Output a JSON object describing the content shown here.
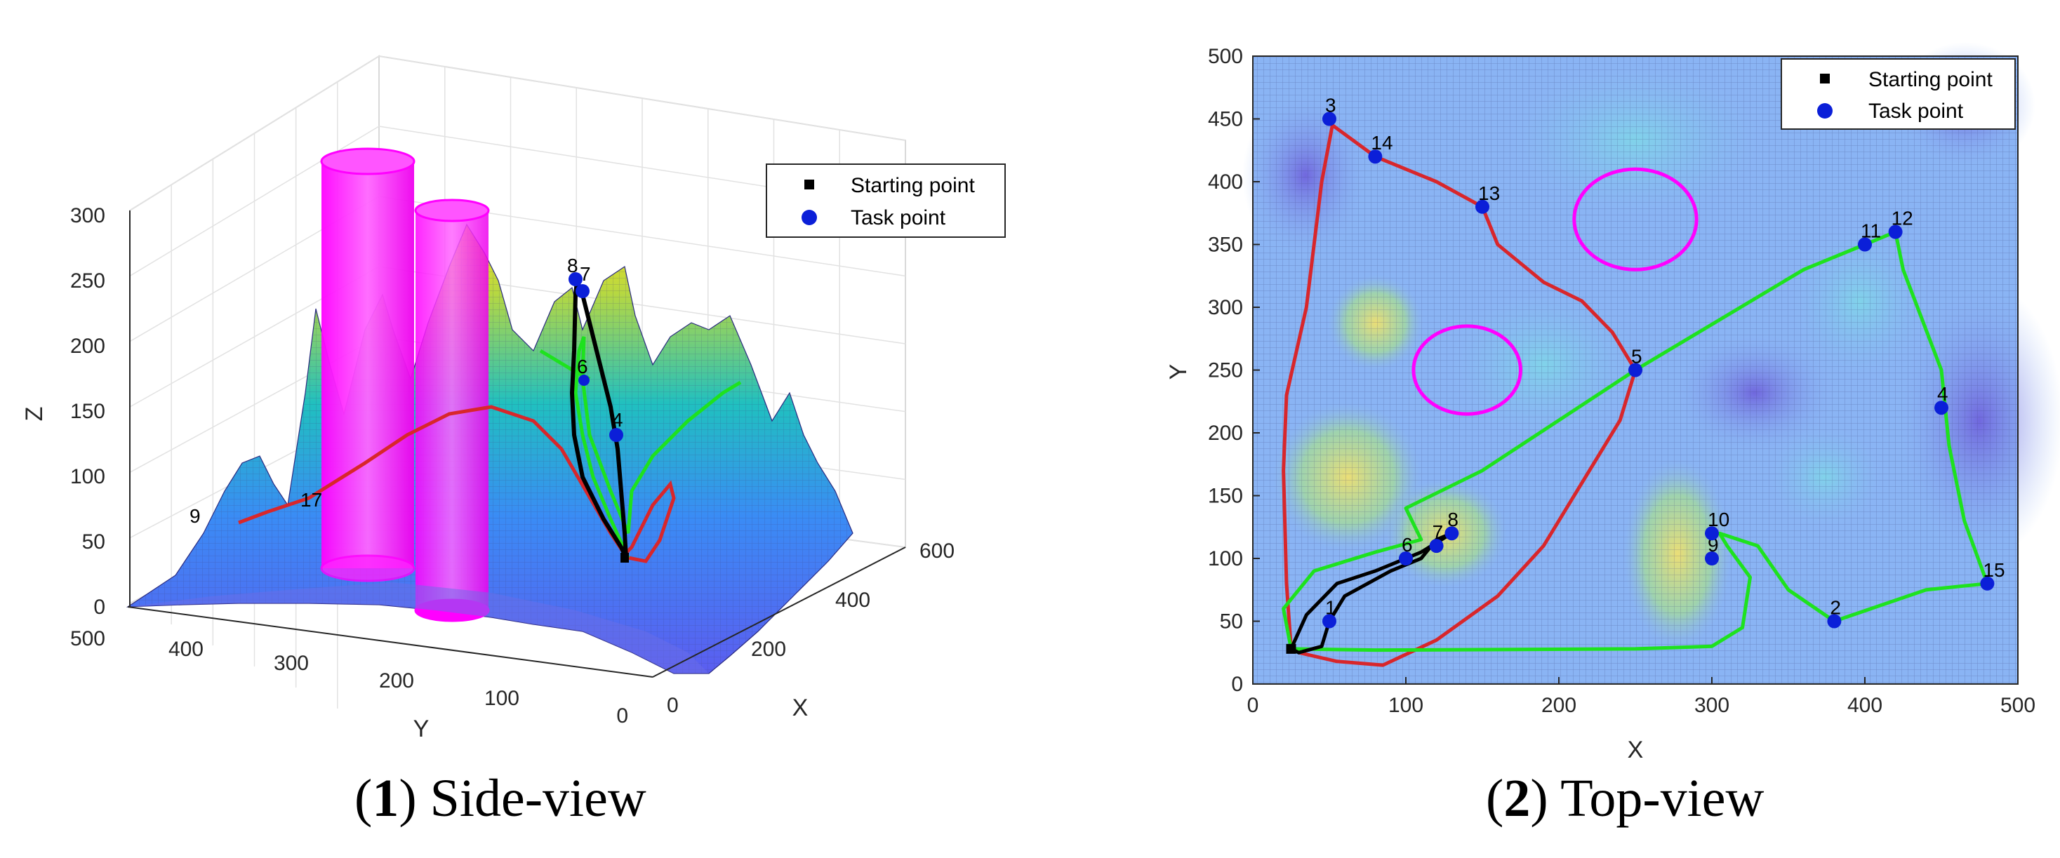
{
  "colors": {
    "red_path": "#d8262b",
    "green_path": "#1ee21e",
    "black_path": "#000000",
    "task_point": "#0b1fd8",
    "obstacle": "#ff00ff"
  },
  "legend": {
    "start_label": "Starting point",
    "task_label": "Task point"
  },
  "captions": {
    "side": {
      "num": "1",
      "text": "Side-view"
    },
    "top": {
      "num": "2",
      "text": "Top-view"
    }
  },
  "chart_data": [
    {
      "type": "surface3d",
      "axes": {
        "xlabel": "X",
        "ylabel": "Y",
        "zlabel": "Z",
        "x_ticks": [
          "0",
          "200",
          "400",
          "600"
        ],
        "y_ticks": [
          "500",
          "400",
          "300",
          "200",
          "100",
          "0"
        ],
        "z_ticks": [
          "0",
          "50",
          "100",
          "150",
          "200",
          "250",
          "300"
        ],
        "zlim": [
          0,
          300
        ]
      },
      "grid": "on",
      "legend_position": "top-right",
      "obstacles": [
        {
          "type": "cylinder",
          "x": 140,
          "y": 250,
          "r": 35,
          "z": [
            0,
            340
          ]
        },
        {
          "type": "cylinder",
          "x": 250,
          "y": 370,
          "r": 40,
          "z": [
            0,
            300
          ]
        }
      ],
      "point_labels": [
        "8",
        "7",
        "6",
        "4",
        "9",
        "17"
      ]
    },
    {
      "type": "scatter",
      "xlabel": "X",
      "ylabel": "Y",
      "xlim": [
        0,
        500
      ],
      "ylim": [
        0,
        500
      ],
      "x_ticks": [
        0,
        100,
        200,
        300,
        400,
        500
      ],
      "y_ticks": [
        0,
        50,
        100,
        150,
        200,
        250,
        300,
        350,
        400,
        450,
        500
      ],
      "legend_position": "top-right",
      "start": {
        "x": 25,
        "y": 28
      },
      "task_points": [
        {
          "label": "1",
          "x": 50,
          "y": 50
        },
        {
          "label": "2",
          "x": 380,
          "y": 50
        },
        {
          "label": "3",
          "x": 50,
          "y": 450
        },
        {
          "label": "4",
          "x": 450,
          "y": 220
        },
        {
          "label": "5",
          "x": 250,
          "y": 250
        },
        {
          "label": "6",
          "x": 100,
          "y": 100
        },
        {
          "label": "7",
          "x": 120,
          "y": 110
        },
        {
          "label": "8",
          "x": 130,
          "y": 120
        },
        {
          "label": "9",
          "x": 300,
          "y": 100
        },
        {
          "label": "10",
          "x": 300,
          "y": 120
        },
        {
          "label": "11",
          "x": 400,
          "y": 350
        },
        {
          "label": "12",
          "x": 420,
          "y": 360
        },
        {
          "label": "13",
          "x": 150,
          "y": 380
        },
        {
          "label": "14",
          "x": 80,
          "y": 420
        },
        {
          "label": "15",
          "x": 480,
          "y": 80
        }
      ],
      "obstacles": [
        {
          "shape": "circle",
          "x": 140,
          "y": 250,
          "r": 35
        },
        {
          "shape": "circle",
          "x": 250,
          "y": 370,
          "r": 40
        }
      ],
      "series": [
        {
          "color": "red",
          "points": [
            [
              25,
              28
            ],
            [
              22,
              80
            ],
            [
              20,
              170
            ],
            [
              22,
              230
            ],
            [
              35,
              300
            ],
            [
              45,
              400
            ],
            [
              52,
              445
            ],
            [
              80,
              420
            ],
            [
              120,
              400
            ],
            [
              150,
              380
            ],
            [
              160,
              350
            ],
            [
              190,
              320
            ],
            [
              215,
              305
            ],
            [
              235,
              280
            ],
            [
              250,
              250
            ],
            [
              240,
              210
            ],
            [
              215,
              160
            ],
            [
              190,
              110
            ],
            [
              160,
              70
            ],
            [
              120,
              35
            ],
            [
              85,
              15
            ],
            [
              55,
              18
            ],
            [
              30,
              25
            ]
          ]
        },
        {
          "color": "green",
          "points": [
            [
              25,
              28
            ],
            [
              20,
              60
            ],
            [
              40,
              90
            ],
            [
              80,
              105
            ],
            [
              110,
              115
            ],
            [
              100,
              140
            ],
            [
              150,
              170
            ],
            [
              250,
              250
            ],
            [
              360,
              330
            ],
            [
              400,
              350
            ],
            [
              420,
              360
            ],
            [
              425,
              330
            ],
            [
              450,
              250
            ],
            [
              455,
              190
            ],
            [
              465,
              130
            ],
            [
              480,
              80
            ],
            [
              440,
              75
            ],
            [
              380,
              50
            ],
            [
              350,
              75
            ],
            [
              330,
              110
            ],
            [
              305,
              120
            ],
            [
              310,
              110
            ],
            [
              325,
              85
            ],
            [
              320,
              45
            ],
            [
              300,
              30
            ],
            [
              250,
              28
            ],
            [
              80,
              27
            ],
            [
              25,
              28
            ]
          ]
        },
        {
          "color": "black",
          "points": [
            [
              25,
              28
            ],
            [
              30,
              25
            ],
            [
              45,
              30
            ],
            [
              50,
              50
            ],
            [
              60,
              70
            ],
            [
              90,
              90
            ],
            [
              110,
              100
            ],
            [
              120,
              115
            ],
            [
              130,
              120
            ],
            [
              110,
              105
            ],
            [
              80,
              90
            ],
            [
              55,
              80
            ],
            [
              35,
              55
            ],
            [
              25,
              28
            ]
          ]
        }
      ]
    }
  ]
}
